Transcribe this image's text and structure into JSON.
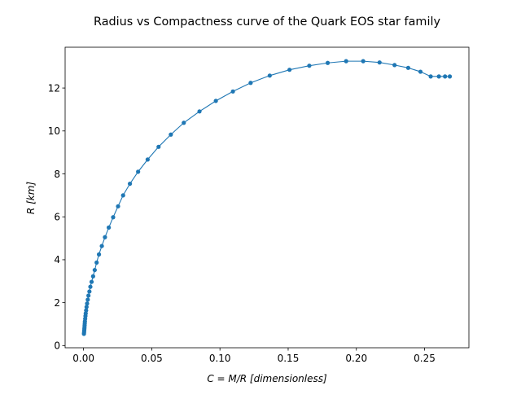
{
  "chart_data": {
    "type": "line",
    "title": "Radius vs Compactness curve of the Quark EOS star family",
    "xlabel": "C = M/R [dimensionless]",
    "ylabel": "R [km]",
    "xlim": [
      -0.0135,
      0.2825
    ],
    "ylim": [
      -0.1,
      13.9
    ],
    "xticks": [
      0.0,
      0.05,
      0.1,
      0.15,
      0.2,
      0.25
    ],
    "xtick_labels": [
      "0.00",
      "0.05",
      "0.10",
      "0.15",
      "0.20",
      "0.25"
    ],
    "yticks": [
      0,
      2,
      4,
      6,
      8,
      10,
      12
    ],
    "ytick_labels": [
      "0",
      "2",
      "4",
      "6",
      "8",
      "10",
      "12"
    ],
    "grid": false,
    "legend": false,
    "series_color": "#1f77b4",
    "markers": true,
    "series": [
      {
        "x": [
          0.0003,
          0.0004,
          0.0005,
          0.0006,
          0.0007,
          0.0008,
          0.0009,
          0.001,
          0.0012,
          0.0014,
          0.0016,
          0.0019,
          0.0022,
          0.0026,
          0.0031,
          0.0036,
          0.0043,
          0.005,
          0.0059,
          0.007,
          0.0082,
          0.0096,
          0.0113,
          0.0134,
          0.0157,
          0.0185,
          0.0217,
          0.0253,
          0.029,
          0.034,
          0.04,
          0.047,
          0.055,
          0.064,
          0.0735,
          0.085,
          0.097,
          0.1095,
          0.1225,
          0.1365,
          0.151,
          0.1655,
          0.179,
          0.1925,
          0.205,
          0.217,
          0.228,
          0.238,
          0.247,
          0.2545,
          0.2605,
          0.265,
          0.2685
        ],
        "y": [
          0.55,
          0.62,
          0.7,
          0.78,
          0.86,
          0.95,
          1.04,
          1.13,
          1.25,
          1.38,
          1.5,
          1.64,
          1.8,
          1.96,
          2.14,
          2.33,
          2.52,
          2.74,
          2.97,
          3.23,
          3.52,
          3.87,
          4.25,
          4.64,
          5.05,
          5.5,
          5.98,
          6.49,
          7.0,
          7.54,
          8.1,
          8.67,
          9.26,
          9.83,
          10.38,
          10.91,
          11.4,
          11.84,
          12.24,
          12.58,
          12.85,
          13.04,
          13.17,
          13.25,
          13.25,
          13.19,
          13.07,
          12.94,
          12.76,
          12.54,
          12.54,
          12.54,
          12.54
        ]
      }
    ]
  }
}
